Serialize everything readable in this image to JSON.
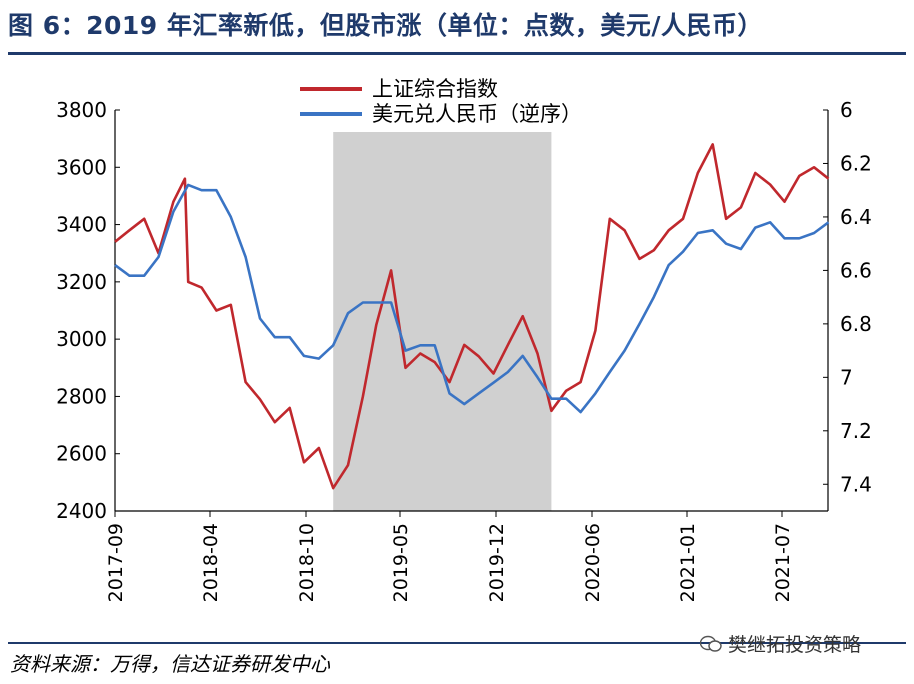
{
  "title": "图 6：2019 年汇率新低，但股市涨（单位：点数，美元/人民币）",
  "source": "资料来源：万得，信达证券研发中心",
  "watermark": "樊继拓投资策略",
  "colors": {
    "title": "#1f3a6b",
    "shanghai": "#c0282d",
    "usdcny": "#3a74c4",
    "shade": "#d0d0d0"
  },
  "chart_data": {
    "type": "line",
    "x_tick_labels": [
      "2017-09",
      "2018-04",
      "2018-10",
      "2019-05",
      "2019-12",
      "2020-06",
      "2021-01",
      "2021-07"
    ],
    "y_left": {
      "lim": [
        2400,
        3800
      ],
      "ticks": [
        2400,
        2600,
        2800,
        3000,
        3200,
        3400,
        3600,
        3800
      ]
    },
    "y_right": {
      "lim": [
        6.0,
        7.5
      ],
      "inverted": true,
      "tick_labels": [
        "6",
        "6.2",
        "6.4",
        "6.6",
        "6.8",
        "7",
        "7.2",
        "7.4"
      ],
      "tick_values": [
        6.0,
        6.2,
        6.4,
        6.6,
        6.8,
        7.0,
        7.2,
        7.4
      ]
    },
    "shaded_range": [
      "2018-12",
      "2020-03"
    ],
    "grid": false,
    "legend_position": "top-center",
    "series": [
      {
        "name": "上证综合指数",
        "axis": "left",
        "color": "#c0282d",
        "x": [
          "2017-09",
          "2017-10",
          "2017-11",
          "2017-12",
          "2018-01",
          "2018-01-25",
          "2018-02",
          "2018-03",
          "2018-04",
          "2018-05",
          "2018-06",
          "2018-07",
          "2018-08",
          "2018-09",
          "2018-10",
          "2018-11",
          "2018-12",
          "2019-01",
          "2019-02",
          "2019-03",
          "2019-04",
          "2019-05",
          "2019-06",
          "2019-07",
          "2019-08",
          "2019-09",
          "2019-10",
          "2019-11",
          "2019-12",
          "2020-01",
          "2020-02",
          "2020-03",
          "2020-04",
          "2020-05",
          "2020-06",
          "2020-07",
          "2020-08",
          "2020-09",
          "2020-10",
          "2020-11",
          "2020-12",
          "2021-01",
          "2021-02",
          "2021-03",
          "2021-04",
          "2021-05",
          "2021-06",
          "2021-07",
          "2021-08",
          "2021-09",
          "2021-10"
        ],
        "y": [
          3340,
          3380,
          3420,
          3300,
          3480,
          3560,
          3200,
          3180,
          3100,
          3120,
          2850,
          2790,
          2710,
          2760,
          2570,
          2620,
          2480,
          2560,
          2800,
          3050,
          3240,
          2900,
          2950,
          2920,
          2850,
          2980,
          2940,
          2880,
          2980,
          3080,
          2950,
          2750,
          2820,
          2850,
          3030,
          3420,
          3380,
          3280,
          3310,
          3380,
          3420,
          3580,
          3680,
          3420,
          3460,
          3580,
          3540,
          3480,
          3570,
          3600,
          3560
        ]
      },
      {
        "name": "美元兑人民币（逆序）",
        "axis": "right",
        "color": "#3a74c4",
        "x": [
          "2017-09",
          "2017-10",
          "2017-11",
          "2017-12",
          "2018-01",
          "2018-02",
          "2018-03",
          "2018-04",
          "2018-05",
          "2018-06",
          "2018-07",
          "2018-08",
          "2018-09",
          "2018-10",
          "2018-11",
          "2018-12",
          "2019-01",
          "2019-02",
          "2019-03",
          "2019-04",
          "2019-05",
          "2019-06",
          "2019-07",
          "2019-08",
          "2019-09",
          "2019-10",
          "2019-11",
          "2019-12",
          "2020-01",
          "2020-02",
          "2020-03",
          "2020-04",
          "2020-05",
          "2020-06",
          "2020-07",
          "2020-08",
          "2020-09",
          "2020-10",
          "2020-11",
          "2020-12",
          "2021-01",
          "2021-02",
          "2021-03",
          "2021-04",
          "2021-05",
          "2021-06",
          "2021-07",
          "2021-08",
          "2021-09",
          "2021-10"
        ],
        "y": [
          6.58,
          6.62,
          6.62,
          6.55,
          6.38,
          6.28,
          6.3,
          6.3,
          6.4,
          6.55,
          6.78,
          6.85,
          6.85,
          6.92,
          6.93,
          6.88,
          6.76,
          6.72,
          6.72,
          6.72,
          6.9,
          6.88,
          6.88,
          7.06,
          7.1,
          7.06,
          7.02,
          6.98,
          6.92,
          7.0,
          7.08,
          7.08,
          7.13,
          7.06,
          6.98,
          6.9,
          6.8,
          6.7,
          6.58,
          6.53,
          6.46,
          6.45,
          6.5,
          6.52,
          6.44,
          6.42,
          6.48,
          6.48,
          6.46,
          6.42
        ]
      }
    ]
  }
}
